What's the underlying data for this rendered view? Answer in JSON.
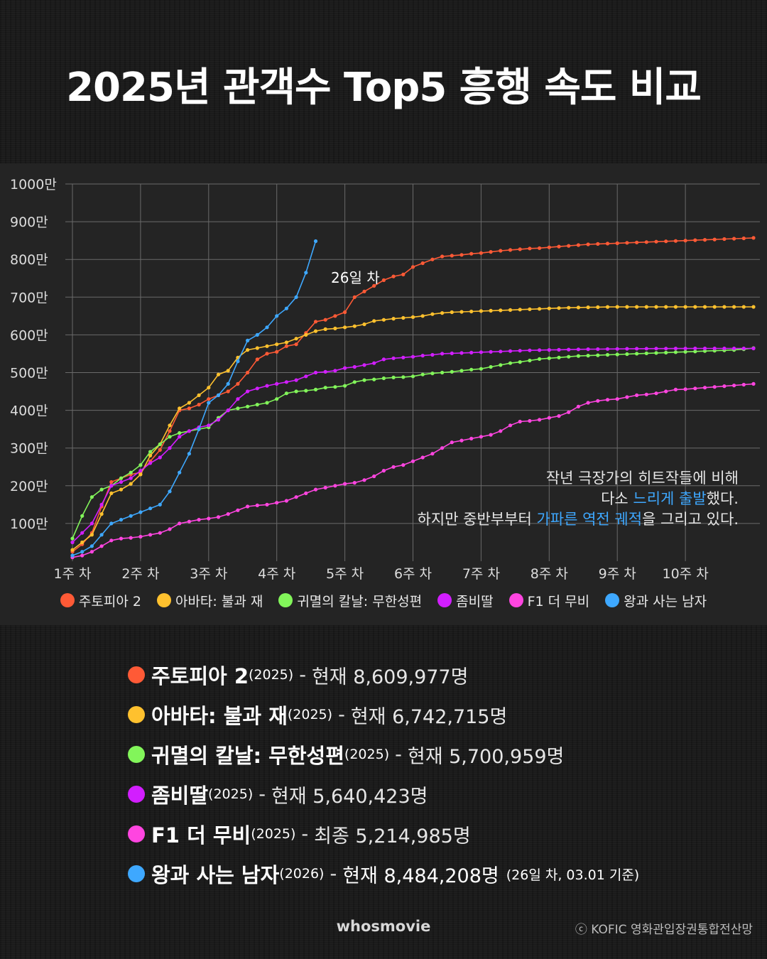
{
  "title": "2025년 관객수 Top5 흥행 속도 비교",
  "chart_data": {
    "type": "line",
    "ylim": [
      0,
      10000000
    ],
    "xlim": [
      1,
      71
    ],
    "y_ticks": [
      {
        "value": 1000000,
        "label": "100만"
      },
      {
        "value": 2000000,
        "label": "200만"
      },
      {
        "value": 3000000,
        "label": "300만"
      },
      {
        "value": 4000000,
        "label": "400만"
      },
      {
        "value": 5000000,
        "label": "500만"
      },
      {
        "value": 6000000,
        "label": "600만"
      },
      {
        "value": 7000000,
        "label": "700만"
      },
      {
        "value": 8000000,
        "label": "800만"
      },
      {
        "value": 9000000,
        "label": "900만"
      },
      {
        "value": 10000000,
        "label": "1000만"
      }
    ],
    "x_ticks": [
      {
        "value": 1,
        "label": "1주 차"
      },
      {
        "value": 8,
        "label": "2주 차"
      },
      {
        "value": 15,
        "label": "3주 차"
      },
      {
        "value": 22,
        "label": "4주 차"
      },
      {
        "value": 29,
        "label": "5주 차"
      },
      {
        "value": 36,
        "label": "6주 차"
      },
      {
        "value": 43,
        "label": "7주 차"
      },
      {
        "value": 50,
        "label": "8주 차"
      },
      {
        "value": 57,
        "label": "9주 차"
      },
      {
        "value": 64,
        "label": "10주 차"
      }
    ],
    "grid": true,
    "legend_position": "bottom",
    "series": [
      {
        "name": "주토피아 2",
        "color": "#ff5a36",
        "x": [
          1,
          2,
          3,
          4,
          5,
          6,
          7,
          8,
          9,
          10,
          11,
          12,
          13,
          14,
          15,
          16,
          17,
          18,
          19,
          20,
          21,
          22,
          23,
          24,
          25,
          26,
          27,
          28,
          29,
          30,
          31,
          32,
          33,
          34,
          35,
          36,
          37,
          38,
          39,
          40,
          41,
          42,
          43,
          44,
          45,
          46,
          47,
          48,
          49,
          50,
          51,
          52,
          53,
          54,
          55,
          56,
          57,
          58,
          59,
          60,
          61,
          62,
          63,
          64,
          65,
          66,
          67,
          68,
          69,
          70,
          71
        ],
        "y": [
          250000,
          450000,
          750000,
          1450000,
          2100000,
          2200000,
          2300000,
          2350000,
          2650000,
          2950000,
          3450000,
          4000000,
          4050000,
          4150000,
          4300000,
          4400000,
          4500000,
          4700000,
          5000000,
          5350000,
          5500000,
          5550000,
          5700000,
          5750000,
          6050000,
          6350000,
          6400000,
          6500000,
          6600000,
          7000000,
          7150000,
          7300000,
          7450000,
          7550000,
          7600000,
          7800000,
          7900000,
          8000000,
          8080000,
          8100000,
          8120000,
          8150000,
          8170000,
          8200000,
          8230000,
          8250000,
          8270000,
          8290000,
          8300000,
          8320000,
          8340000,
          8360000,
          8380000,
          8400000,
          8410000,
          8420000,
          8430000,
          8440000,
          8450000,
          8460000,
          8470000,
          8480000,
          8490000,
          8500000,
          8510000,
          8520000,
          8530000,
          8540000,
          8550000,
          8560000,
          8570000
        ]
      },
      {
        "name": "아바타: 불과 재",
        "color": "#ffc12e",
        "x": [
          1,
          2,
          3,
          4,
          5,
          6,
          7,
          8,
          9,
          10,
          11,
          12,
          13,
          14,
          15,
          16,
          17,
          18,
          19,
          20,
          21,
          22,
          23,
          24,
          25,
          26,
          27,
          28,
          29,
          30,
          31,
          32,
          33,
          34,
          35,
          36,
          37,
          38,
          39,
          40,
          41,
          42,
          43,
          44,
          45,
          46,
          47,
          48,
          49,
          50,
          51,
          52,
          53,
          54,
          55,
          56,
          57,
          58,
          59,
          60,
          61,
          62,
          63,
          64,
          65,
          66,
          67,
          68,
          69,
          70,
          71
        ],
        "y": [
          300000,
          500000,
          700000,
          1250000,
          1800000,
          1900000,
          2050000,
          2300000,
          2800000,
          3100000,
          3600000,
          4050000,
          4200000,
          4400000,
          4600000,
          4950000,
          5050000,
          5400000,
          5600000,
          5650000,
          5700000,
          5750000,
          5800000,
          5900000,
          6000000,
          6100000,
          6150000,
          6170000,
          6200000,
          6230000,
          6280000,
          6370000,
          6400000,
          6430000,
          6450000,
          6470000,
          6500000,
          6550000,
          6580000,
          6600000,
          6610000,
          6620000,
          6630000,
          6640000,
          6650000,
          6660000,
          6670000,
          6680000,
          6690000,
          6700000,
          6710000,
          6720000,
          6725000,
          6730000,
          6735000,
          6740000,
          6742000,
          6742715,
          6742715,
          6742715,
          6742715,
          6742715,
          6742715,
          6742715,
          6742715,
          6742715,
          6742715,
          6742715,
          6742715,
          6742715,
          6742715
        ]
      },
      {
        "name": "귀멸의 칼날: 무한성편",
        "color": "#82f55a",
        "x": [
          1,
          2,
          3,
          4,
          5,
          6,
          7,
          8,
          9,
          10,
          11,
          12,
          13,
          14,
          15,
          16,
          17,
          18,
          19,
          20,
          21,
          22,
          23,
          24,
          25,
          26,
          27,
          28,
          29,
          30,
          31,
          32,
          33,
          34,
          35,
          36,
          37,
          38,
          39,
          40,
          41,
          42,
          43,
          44,
          45,
          46,
          47,
          48,
          49,
          50,
          51,
          52,
          53,
          54,
          55,
          56,
          57,
          58,
          59,
          60,
          61,
          62,
          63,
          64,
          65,
          66,
          67,
          68,
          69,
          70,
          71
        ],
        "y": [
          600000,
          1200000,
          1700000,
          1900000,
          2000000,
          2200000,
          2350000,
          2550000,
          2900000,
          3100000,
          3300000,
          3400000,
          3450000,
          3500000,
          3550000,
          3800000,
          4000000,
          4050000,
          4100000,
          4150000,
          4200000,
          4300000,
          4450000,
          4500000,
          4520000,
          4550000,
          4600000,
          4620000,
          4650000,
          4750000,
          4800000,
          4820000,
          4850000,
          4870000,
          4880000,
          4900000,
          4950000,
          4980000,
          5000000,
          5020000,
          5050000,
          5080000,
          5100000,
          5150000,
          5200000,
          5250000,
          5280000,
          5320000,
          5360000,
          5380000,
          5400000,
          5420000,
          5440000,
          5450000,
          5460000,
          5470000,
          5480000,
          5490000,
          5500000,
          5510000,
          5520000,
          5530000,
          5540000,
          5550000,
          5560000,
          5570000,
          5580000,
          5590000,
          5600000,
          5620000,
          5650000
        ]
      },
      {
        "name": "좀비딸",
        "color": "#d21eff",
        "x": [
          1,
          2,
          3,
          4,
          5,
          6,
          7,
          8,
          9,
          10,
          11,
          12,
          13,
          14,
          15,
          16,
          17,
          18,
          19,
          20,
          21,
          22,
          23,
          24,
          25,
          26,
          27,
          28,
          29,
          30,
          31,
          32,
          33,
          34,
          35,
          36,
          37,
          38,
          39,
          40,
          41,
          42,
          43,
          44,
          45,
          46,
          47,
          48,
          49,
          50,
          51,
          52,
          53,
          54,
          55,
          56,
          57,
          58,
          59,
          60,
          61,
          62,
          63,
          64,
          65,
          66,
          67,
          68,
          69,
          70,
          71
        ],
        "y": [
          500000,
          750000,
          1000000,
          1500000,
          2000000,
          2100000,
          2200000,
          2400000,
          2600000,
          2750000,
          3000000,
          3300000,
          3450000,
          3550000,
          3600000,
          3750000,
          4000000,
          4300000,
          4500000,
          4580000,
          4650000,
          4700000,
          4750000,
          4800000,
          4900000,
          5000000,
          5020000,
          5050000,
          5120000,
          5150000,
          5200000,
          5250000,
          5350000,
          5380000,
          5400000,
          5420000,
          5450000,
          5470000,
          5500000,
          5510000,
          5520000,
          5530000,
          5540000,
          5550000,
          5560000,
          5570000,
          5580000,
          5590000,
          5595000,
          5600000,
          5605000,
          5610000,
          5615000,
          5620000,
          5622000,
          5625000,
          5628000,
          5630000,
          5632000,
          5634000,
          5636000,
          5637000,
          5638000,
          5639000,
          5640000,
          5640423,
          5640423,
          5640423,
          5640423,
          5640423,
          5640423
        ]
      },
      {
        "name": "F1 더 무비",
        "color": "#ff45e0",
        "x": [
          1,
          2,
          3,
          4,
          5,
          6,
          7,
          8,
          9,
          10,
          11,
          12,
          13,
          14,
          15,
          16,
          17,
          18,
          19,
          20,
          21,
          22,
          23,
          24,
          25,
          26,
          27,
          28,
          29,
          30,
          31,
          32,
          33,
          34,
          35,
          36,
          37,
          38,
          39,
          40,
          41,
          42,
          43,
          44,
          45,
          46,
          47,
          48,
          49,
          50,
          51,
          52,
          53,
          54,
          55,
          56,
          57,
          58,
          59,
          60,
          61,
          62,
          63,
          64,
          65,
          66,
          67,
          68,
          69,
          70,
          71
        ],
        "y": [
          100000,
          150000,
          250000,
          400000,
          550000,
          600000,
          620000,
          650000,
          700000,
          750000,
          850000,
          1000000,
          1050000,
          1100000,
          1130000,
          1170000,
          1250000,
          1350000,
          1450000,
          1480000,
          1500000,
          1550000,
          1600000,
          1700000,
          1800000,
          1900000,
          1950000,
          2000000,
          2050000,
          2080000,
          2150000,
          2250000,
          2400000,
          2500000,
          2550000,
          2650000,
          2750000,
          2850000,
          3000000,
          3150000,
          3200000,
          3250000,
          3300000,
          3350000,
          3450000,
          3600000,
          3700000,
          3720000,
          3750000,
          3800000,
          3850000,
          3950000,
          4100000,
          4200000,
          4250000,
          4280000,
          4300000,
          4350000,
          4400000,
          4420000,
          4450000,
          4500000,
          4550000,
          4560000,
          4580000,
          4600000,
          4620000,
          4640000,
          4660000,
          4680000,
          4700000
        ]
      },
      {
        "name": "왕과 사는 남자",
        "color": "#3ea8ff",
        "x": [
          1,
          2,
          3,
          4,
          5,
          6,
          7,
          8,
          9,
          10,
          11,
          12,
          13,
          14,
          15,
          16,
          17,
          18,
          19,
          20,
          21,
          22,
          23,
          24,
          25,
          26
        ],
        "y": [
          150000,
          250000,
          400000,
          700000,
          1000000,
          1100000,
          1200000,
          1300000,
          1400000,
          1500000,
          1850000,
          2350000,
          2850000,
          3500000,
          4200000,
          4400000,
          4700000,
          5300000,
          5850000,
          6000000,
          6200000,
          6500000,
          6700000,
          7000000,
          7650000,
          8484208
        ]
      }
    ],
    "annotations": [
      {
        "text": "26일 차"
      }
    ]
  },
  "annotation_label": "26일 차",
  "caption": {
    "line1": "작년 극장가의 히트작들에 비해",
    "line2a": "다소 ",
    "line2b": "느리게 출발",
    "line2c": "했다.",
    "line3a": "하지만 중반부부터 ",
    "line3b": "가파른 역전 궤적",
    "line3c": "을 그리고 있다.",
    "highlight_color": "#3ea8ff"
  },
  "summary": [
    {
      "color": "#ff5a36",
      "title": "주토피아 2",
      "year": "(2025)",
      "sep": "-",
      "value": "현재 8,609,977명",
      "note": ""
    },
    {
      "color": "#ffc12e",
      "title": "아바타: 불과 재",
      "year": "(2025)",
      "sep": "-",
      "value": "현재 6,742,715명",
      "note": ""
    },
    {
      "color": "#82f55a",
      "title": "귀멸의 칼날: 무한성편",
      "year": "(2025)",
      "sep": "-",
      "value": "현재 5,700,959명",
      "note": ""
    },
    {
      "color": "#d21eff",
      "title": "좀비딸",
      "year": "(2025)",
      "sep": "-",
      "value": "현재 5,640,423명",
      "note": ""
    },
    {
      "color": "#ff45e0",
      "title": "F1 더 무비",
      "year": "(2025)",
      "sep": "-",
      "value": "최종 5,214,985명",
      "note": ""
    },
    {
      "color": "#3ea8ff",
      "title": "왕과 사는 남자",
      "year": "(2026)",
      "sep": "-",
      "value": "현재 8,484,208명",
      "note": "(26일 차, 03.01 기준)"
    }
  ],
  "brand": "whosmovie",
  "source": "ⓒ KOFIC 영화관입장권통합전산망"
}
